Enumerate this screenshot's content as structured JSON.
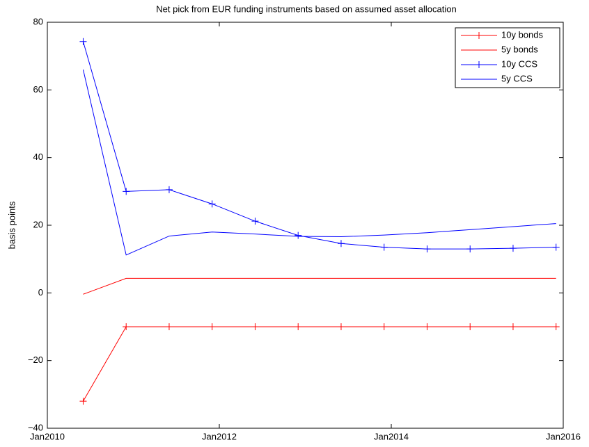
{
  "chart_data": {
    "type": "line",
    "title": "Net pick from EUR funding instruments based on assumed asset allocation",
    "ylabel": "basis points",
    "x": [
      "2010-06",
      "2010-12",
      "2011-06",
      "2011-12",
      "2012-06",
      "2012-12",
      "2013-06",
      "2013-12",
      "2014-06",
      "2014-12",
      "2015-06",
      "2015-12"
    ],
    "xlim": [
      "2010-01",
      "2016-01"
    ],
    "xticks": [
      {
        "value": "2010-01",
        "label": "Jan2010"
      },
      {
        "value": "2012-01",
        "label": "Jan2012"
      },
      {
        "value": "2014-01",
        "label": "Jan2014"
      },
      {
        "value": "2016-01",
        "label": "Jan2016"
      }
    ],
    "ylim": [
      -40,
      80
    ],
    "yticks": [
      {
        "value": -40,
        "label": "−40"
      },
      {
        "value": -20,
        "label": "−20"
      },
      0,
      20,
      40,
      60,
      80
    ],
    "grid": false,
    "legend": "upper right",
    "series": [
      {
        "name": "10y bonds",
        "color": "#ff0000",
        "marker": "+",
        "values": [
          -32,
          -10,
          -10,
          -10,
          -10,
          -10,
          -10,
          -10,
          -10,
          -10,
          -10,
          -10
        ]
      },
      {
        "name": "5y bonds",
        "color": "#ff0000",
        "marker": null,
        "values": [
          -0.4,
          4.3,
          4.3,
          4.3,
          4.3,
          4.3,
          4.3,
          4.3,
          4.3,
          4.3,
          4.3,
          4.3
        ]
      },
      {
        "name": "10y CCS",
        "color": "#0000ff",
        "marker": "+",
        "values": [
          74.3,
          30,
          30.5,
          26.3,
          21.2,
          17,
          14.6,
          13.5,
          13,
          13,
          13.2,
          13.5
        ]
      },
      {
        "name": "5y CCS",
        "color": "#0000ff",
        "marker": null,
        "values": [
          66,
          11.2,
          16.8,
          18,
          17.4,
          16.7,
          16.6,
          17.1,
          17.8,
          18.7,
          19.6,
          20.5
        ]
      }
    ]
  }
}
